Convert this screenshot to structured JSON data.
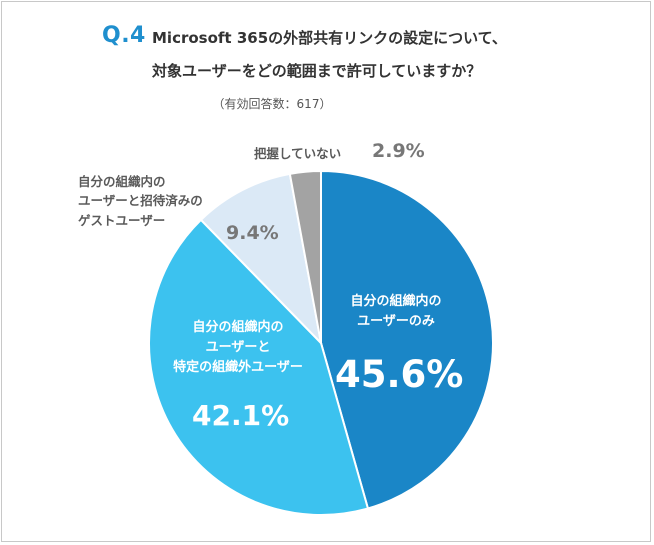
{
  "question": {
    "number": "Q.4",
    "line1": "Microsoft 365の外部共有リンクの設定について、",
    "line2": "対象ユーザーをどの範囲まで許可していますか？",
    "note": "（有効回答数：617）"
  },
  "chart_data": {
    "type": "pie",
    "start": "12 o'clock, clockwise",
    "slices": [
      {
        "name": "自分の組織内のユーザーのみ",
        "label_lines": [
          "自分の組織内の",
          "ユーザーのみ"
        ],
        "value": 45.6,
        "value_label": "45.6%",
        "color": "#1a86c7"
      },
      {
        "name": "自分の組織内のユーザーと特定の組織外ユーザー",
        "label_lines": [
          "自分の組織内の",
          "ユーザーと",
          "特定の組織外ユーザー"
        ],
        "value": 42.1,
        "value_label": "42.1%",
        "color": "#3cc2ef"
      },
      {
        "name": "自分の組織内のユーザーと招待済みのゲストユーザー",
        "label_lines": [
          "自分の組織内の",
          "ユーザーと招待済みの",
          "ゲストユーザー"
        ],
        "value": 9.4,
        "value_label": "9.4%",
        "color": "#dbe9f6"
      },
      {
        "name": "把握していない",
        "label_lines": [
          "把握していない"
        ],
        "value": 2.9,
        "value_label": "2.9%",
        "color": "#a3a3a3"
      }
    ]
  }
}
